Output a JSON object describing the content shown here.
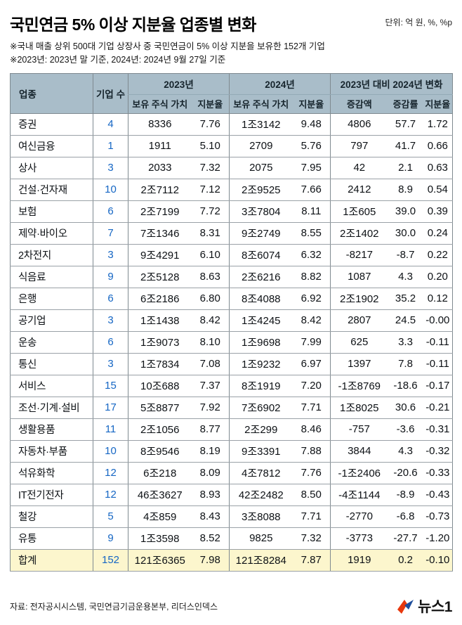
{
  "page": {
    "title": "국민연금 5% 이상 지분율 업종별 변화",
    "unit_label": "단위: 억 원, %, %p",
    "notes": [
      "※국내 매출 상위 500대 기업 상장사 중 국민연금이 5% 이상 지분을 보유한 152개 기업",
      "※2023년: 2023년 말 기준, 2024년: 2024년 9월 27일 기준"
    ]
  },
  "table": {
    "headers": {
      "industry": "업종",
      "count": "기업 수",
      "y2023": "2023년",
      "y2024": "2024년",
      "change": "2023년 대비 2024년 변화",
      "value": "보유 주식 가치",
      "ratio": "지분율",
      "amount": "증감액",
      "rate": "증감률",
      "ratio_change": "지분율"
    }
  },
  "chart_data": {
    "type": "table",
    "title": "국민연금 5% 이상 지분율 업종별 변화",
    "unit": "억 원, %, %p",
    "columns": [
      "업종",
      "기업 수",
      "2023년 보유 주식 가치",
      "2023년 지분율",
      "2024년 보유 주식 가치",
      "2024년 지분율",
      "증감액",
      "증감률",
      "지분율 변화"
    ],
    "rows": [
      [
        "증권",
        "4",
        "8336",
        "7.76",
        "1조3142",
        "9.48",
        "4806",
        "57.7",
        "1.72"
      ],
      [
        "여신금융",
        "1",
        "1911",
        "5.10",
        "2709",
        "5.76",
        "797",
        "41.7",
        "0.66"
      ],
      [
        "상사",
        "3",
        "2033",
        "7.32",
        "2075",
        "7.95",
        "42",
        "2.1",
        "0.63"
      ],
      [
        "건설·건자재",
        "10",
        "2조7112",
        "7.12",
        "2조9525",
        "7.66",
        "2412",
        "8.9",
        "0.54"
      ],
      [
        "보험",
        "6",
        "2조7199",
        "7.72",
        "3조7804",
        "8.11",
        "1조605",
        "39.0",
        "0.39"
      ],
      [
        "제약·바이오",
        "7",
        "7조1346",
        "8.31",
        "9조2749",
        "8.55",
        "2조1402",
        "30.0",
        "0.24"
      ],
      [
        "2차전지",
        "3",
        "9조4291",
        "6.10",
        "8조6074",
        "6.32",
        "-8217",
        "-8.7",
        "0.22"
      ],
      [
        "식음료",
        "9",
        "2조5128",
        "8.63",
        "2조6216",
        "8.82",
        "1087",
        "4.3",
        "0.20"
      ],
      [
        "은행",
        "6",
        "6조2186",
        "6.80",
        "8조4088",
        "6.92",
        "2조1902",
        "35.2",
        "0.12"
      ],
      [
        "공기업",
        "3",
        "1조1438",
        "8.42",
        "1조4245",
        "8.42",
        "2807",
        "24.5",
        "-0.00"
      ],
      [
        "운송",
        "6",
        "1조9073",
        "8.10",
        "1조9698",
        "7.99",
        "625",
        "3.3",
        "-0.11"
      ],
      [
        "통신",
        "3",
        "1조7834",
        "7.08",
        "1조9232",
        "6.97",
        "1397",
        "7.8",
        "-0.11"
      ],
      [
        "서비스",
        "15",
        "10조688",
        "7.37",
        "8조1919",
        "7.20",
        "-1조8769",
        "-18.6",
        "-0.17"
      ],
      [
        "조선·기계·설비",
        "17",
        "5조8877",
        "7.92",
        "7조6902",
        "7.71",
        "1조8025",
        "30.6",
        "-0.21"
      ],
      [
        "생활용품",
        "11",
        "2조1056",
        "8.77",
        "2조299",
        "8.46",
        "-757",
        "-3.6",
        "-0.31"
      ],
      [
        "자동차·부품",
        "10",
        "8조9546",
        "8.19",
        "9조3391",
        "7.88",
        "3844",
        "4.3",
        "-0.32"
      ],
      [
        "석유화학",
        "12",
        "6조218",
        "8.09",
        "4조7812",
        "7.76",
        "-1조2406",
        "-20.6",
        "-0.33"
      ],
      [
        "IT전기전자",
        "12",
        "46조3627",
        "8.93",
        "42조2482",
        "8.50",
        "-4조1144",
        "-8.9",
        "-0.43"
      ],
      [
        "철강",
        "5",
        "4조859",
        "8.43",
        "3조8088",
        "7.71",
        "-2770",
        "-6.8",
        "-0.73"
      ],
      [
        "유통",
        "9",
        "1조3598",
        "8.52",
        "9825",
        "7.32",
        "-3773",
        "-27.7",
        "-1.20"
      ]
    ],
    "total_row": [
      "합계",
      "152",
      "121조6365",
      "7.98",
      "121조8284",
      "7.87",
      "1919",
      "0.2",
      "-0.10"
    ]
  },
  "colors": {
    "header_bg": "#a9bdc9",
    "header_text": "#16242c",
    "total_bg": "#fcf6cd",
    "count_color": "#1566c4",
    "border": "#7f8a90",
    "row_line": "#9aa1a7",
    "logo_red": "#e8380d",
    "logo_blue": "#1f4e9c"
  },
  "footer": {
    "source": "자료: 전자공시시스템, 국민연금기금운용본부, 리더스인덱스",
    "logo_text": "뉴스1"
  }
}
